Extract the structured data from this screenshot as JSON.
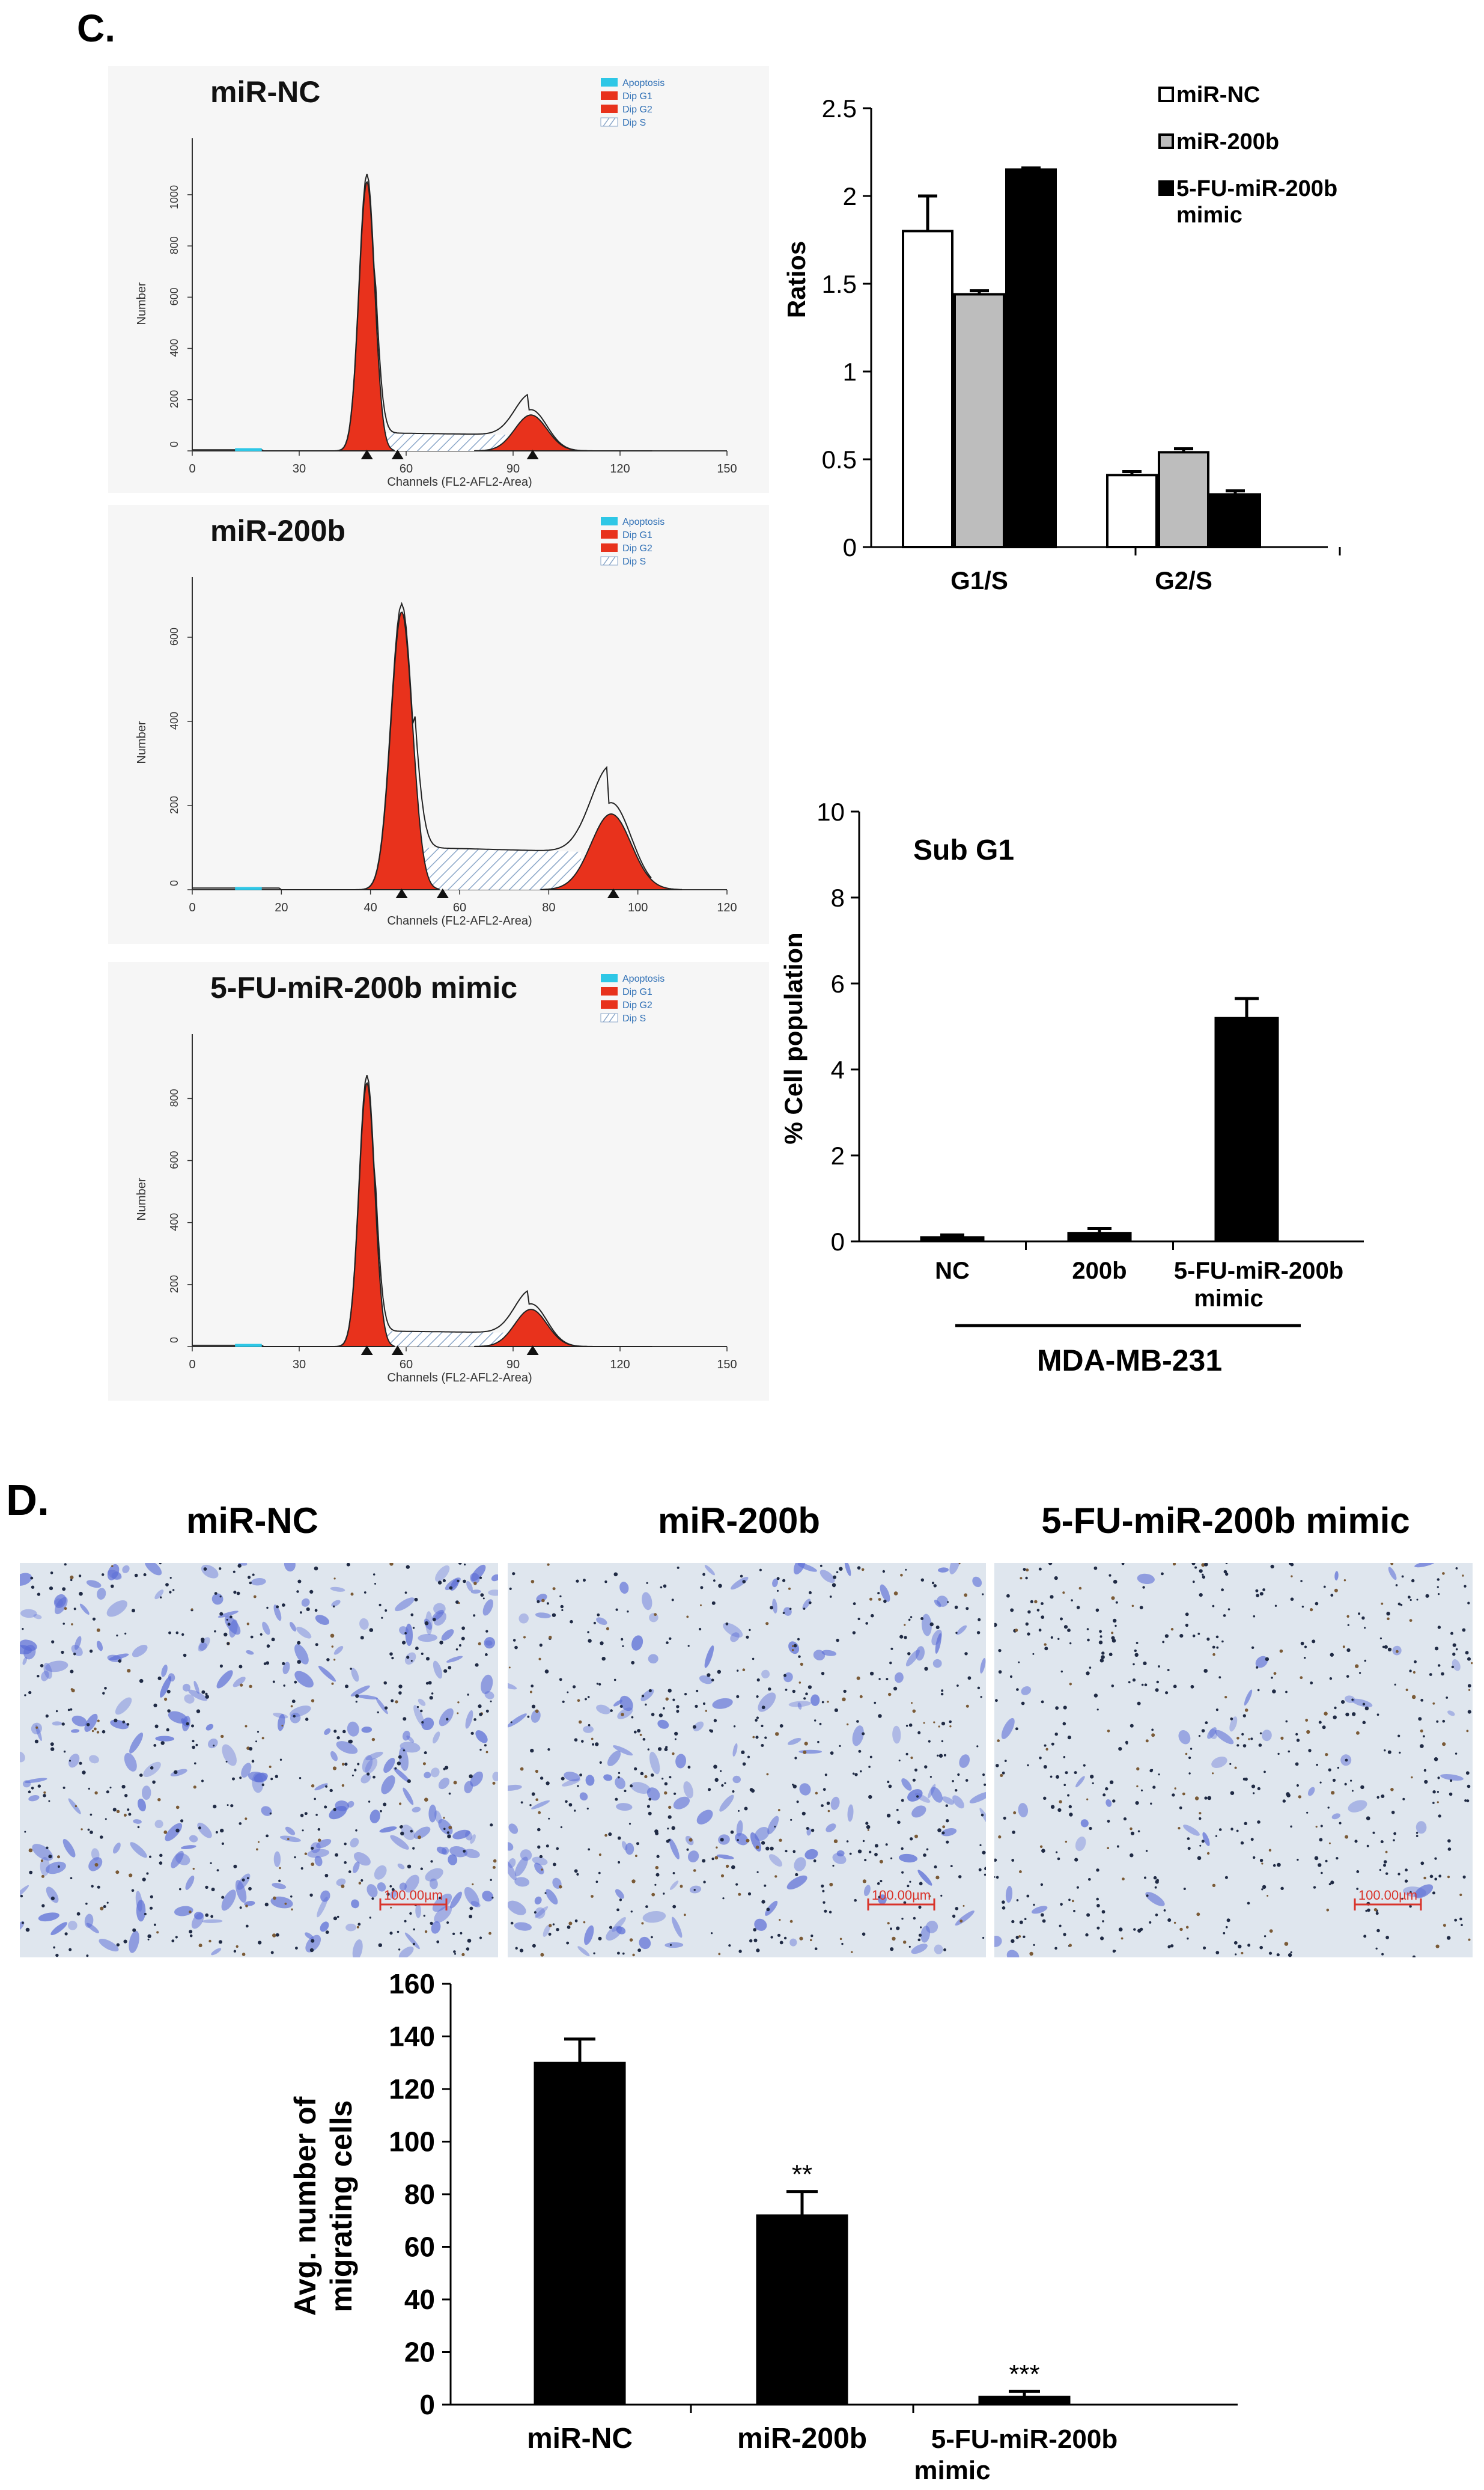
{
  "panel_c": {
    "label": "C.",
    "histograms": [
      {
        "title": "miR-NC",
        "ylabel": "Number",
        "xlabel": "Channels (FL2-AFL2-Area)",
        "legend": [
          "Apoptosis",
          "Dip G1",
          "Dip G2",
          "Dip S"
        ],
        "xticks": [
          "0",
          "30",
          "60",
          "90",
          "120",
          "150"
        ],
        "xmax": 150,
        "yticks": [
          "0",
          "200",
          "400",
          "600",
          "800",
          "1000"
        ],
        "ymax": 1150,
        "g1_peak": {
          "x": 49,
          "y": 1050,
          "sigma": 2.2
        },
        "g2_peak": {
          "x": 95,
          "y": 140,
          "sigma": 4.5
        },
        "s_level": 70
      },
      {
        "title": "miR-200b",
        "ylabel": "Number",
        "xlabel": "Channels (FL2-AFL2-Area)",
        "legend": [
          "Apoptosis",
          "Dip G1",
          "Dip G2",
          "Dip S"
        ],
        "xticks": [
          "0",
          "20",
          "40",
          "60",
          "80",
          "100",
          "120"
        ],
        "xmax": 120,
        "yticks": [
          "0",
          "200",
          "400",
          "600"
        ],
        "ymax": 700,
        "g1_peak": {
          "x": 47,
          "y": 660,
          "sigma": 2.4
        },
        "g2_peak": {
          "x": 94,
          "y": 180,
          "sigma": 4.5
        },
        "s_level": 100
      },
      {
        "title": "5-FU-miR-200b mimic",
        "ylabel": "Number",
        "xlabel": "Channels (FL2-AFL2-Area)",
        "legend": [
          "Apoptosis",
          "Dip G1",
          "Dip G2",
          "Dip S"
        ],
        "xticks": [
          "0",
          "30",
          "60",
          "90",
          "120",
          "150"
        ],
        "xmax": 150,
        "yticks": [
          "0",
          "200",
          "400",
          "600",
          "800"
        ],
        "ymax": 950,
        "g1_peak": {
          "x": 49,
          "y": 850,
          "sigma": 2.2
        },
        "g2_peak": {
          "x": 95,
          "y": 120,
          "sigma": 4.5
        },
        "s_level": 50
      }
    ]
  },
  "panel_d": {
    "label": "D.",
    "image_titles": [
      "miR-NC",
      "miR-200b",
      "5-FU-miR-200b mimic"
    ],
    "scale_bar_label": "100.00µm"
  },
  "colors": {
    "peak_fill": "#e8321c",
    "apoptosis": "#2ec7e6",
    "hatch": "#8aa6c8",
    "bar_white": "#ffffff",
    "bar_gray": "#bdbdbd",
    "bar_black": "#000000",
    "micro_bg": "#dfe6ee",
    "cell_blue": "#5b6dd6",
    "scale_red": "#d9332a"
  },
  "chart_data": [
    {
      "type": "bar",
      "categories": [
        "G1/S",
        "G2/S"
      ],
      "series": [
        {
          "name": "miR-NC",
          "values": [
            1.8,
            0.41
          ],
          "errors": [
            0.2,
            0.02
          ]
        },
        {
          "name": "miR-200b",
          "values": [
            1.44,
            0.54
          ],
          "errors": [
            0.02,
            0.02
          ]
        },
        {
          "name": "5-FU-miR-200b mimic",
          "values": [
            2.15,
            0.3
          ],
          "errors": [
            0.01,
            0.02
          ]
        }
      ],
      "ylabel": "Ratios",
      "ylim": [
        0,
        2.5
      ],
      "yticks": [
        "0",
        "0.5",
        "1",
        "1.5",
        "2",
        "2.5"
      ],
      "legend": "top-right",
      "grid": false
    },
    {
      "type": "bar",
      "categories": [
        "NC",
        "200b",
        "5-FU-miR-200b mimic"
      ],
      "values": [
        0.1,
        0.2,
        5.2
      ],
      "errors": [
        0.05,
        0.1,
        0.45
      ],
      "title": "Sub G1",
      "ylabel": "% Cell population",
      "xlabel": "MDA-MB-231",
      "ylim": [
        0,
        10
      ],
      "yticks": [
        "0",
        "2",
        "4",
        "6",
        "8",
        "10"
      ],
      "grid": false
    },
    {
      "type": "bar",
      "categories": [
        "miR-NC",
        "miR-200b",
        "5-FU-miR-200b mimic"
      ],
      "values": [
        130,
        72,
        3
      ],
      "errors": [
        9,
        9,
        2
      ],
      "annotations": [
        "",
        "**",
        "***"
      ],
      "ylabel": "Avg. number of migrating cells",
      "ylim": [
        0,
        160
      ],
      "yticks": [
        "0",
        "20",
        "40",
        "60",
        "80",
        "100",
        "120",
        "140",
        "160"
      ],
      "grid": false
    }
  ]
}
